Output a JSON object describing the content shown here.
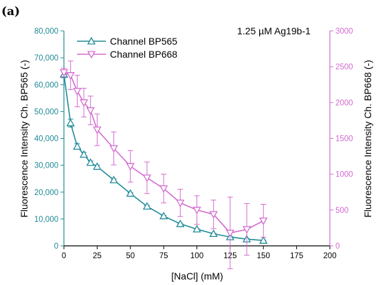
{
  "panel_label": "(a)",
  "annotation": "1.25 µM Ag19b-1",
  "colors": {
    "bp565": "#1f8a96",
    "bp668": "#d36ad0",
    "axis": "#000000"
  },
  "chart_data": {
    "type": "line",
    "xlabel": "[NaCl] (mM)",
    "ylabel_left": "Fluorescence Intensity Ch. BP565 (-)",
    "ylabel_right": "Fluorescence Intensity Ch. BP668 (-)",
    "xlim": [
      0,
      200
    ],
    "ylim_left": [
      0,
      80000
    ],
    "ylim_right": [
      0,
      3000
    ],
    "x_ticks": [
      "0",
      "25",
      "50",
      "75",
      "100",
      "125",
      "150",
      "175",
      "200"
    ],
    "y_ticks_left": [
      "0",
      "10,000",
      "20,000",
      "30,000",
      "40,000",
      "50,000",
      "60,000",
      "70,000",
      "80,000"
    ],
    "y_ticks_right": [
      "0",
      "500",
      "1000",
      "1500",
      "2000",
      "2500",
      "3000"
    ],
    "legend_position": "top-left",
    "grid": false,
    "series": [
      {
        "name": "Channel BP565",
        "axis": "left",
        "marker": "triangle-up",
        "x": [
          0,
          5,
          10,
          15,
          20,
          25,
          37.5,
          50,
          62.5,
          75,
          87.5,
          100,
          112.5,
          125,
          137.5,
          150
        ],
        "y": [
          63800,
          45700,
          37000,
          34000,
          31000,
          29500,
          24500,
          19500,
          14700,
          11100,
          8200,
          6200,
          4500,
          3300,
          2500,
          2000
        ],
        "err": [
          1200,
          1500,
          1000,
          800,
          600,
          500,
          400,
          300,
          300,
          250,
          200,
          200,
          150,
          150,
          150,
          150
        ]
      },
      {
        "name": "Channel BP668",
        "axis": "right",
        "marker": "triangle-down",
        "x": [
          0,
          5,
          10,
          15,
          20,
          25,
          37.5,
          50,
          62.5,
          75,
          87.5,
          100,
          112.5,
          125,
          137.5,
          150
        ],
        "y": [
          2420,
          2380,
          2160,
          2000,
          1890,
          1620,
          1360,
          1110,
          950,
          800,
          600,
          500,
          440,
          180,
          230,
          350
        ],
        "err": [
          60,
          200,
          220,
          200,
          200,
          220,
          230,
          220,
          220,
          200,
          190,
          200,
          200,
          500,
          360,
          230
        ]
      }
    ]
  }
}
